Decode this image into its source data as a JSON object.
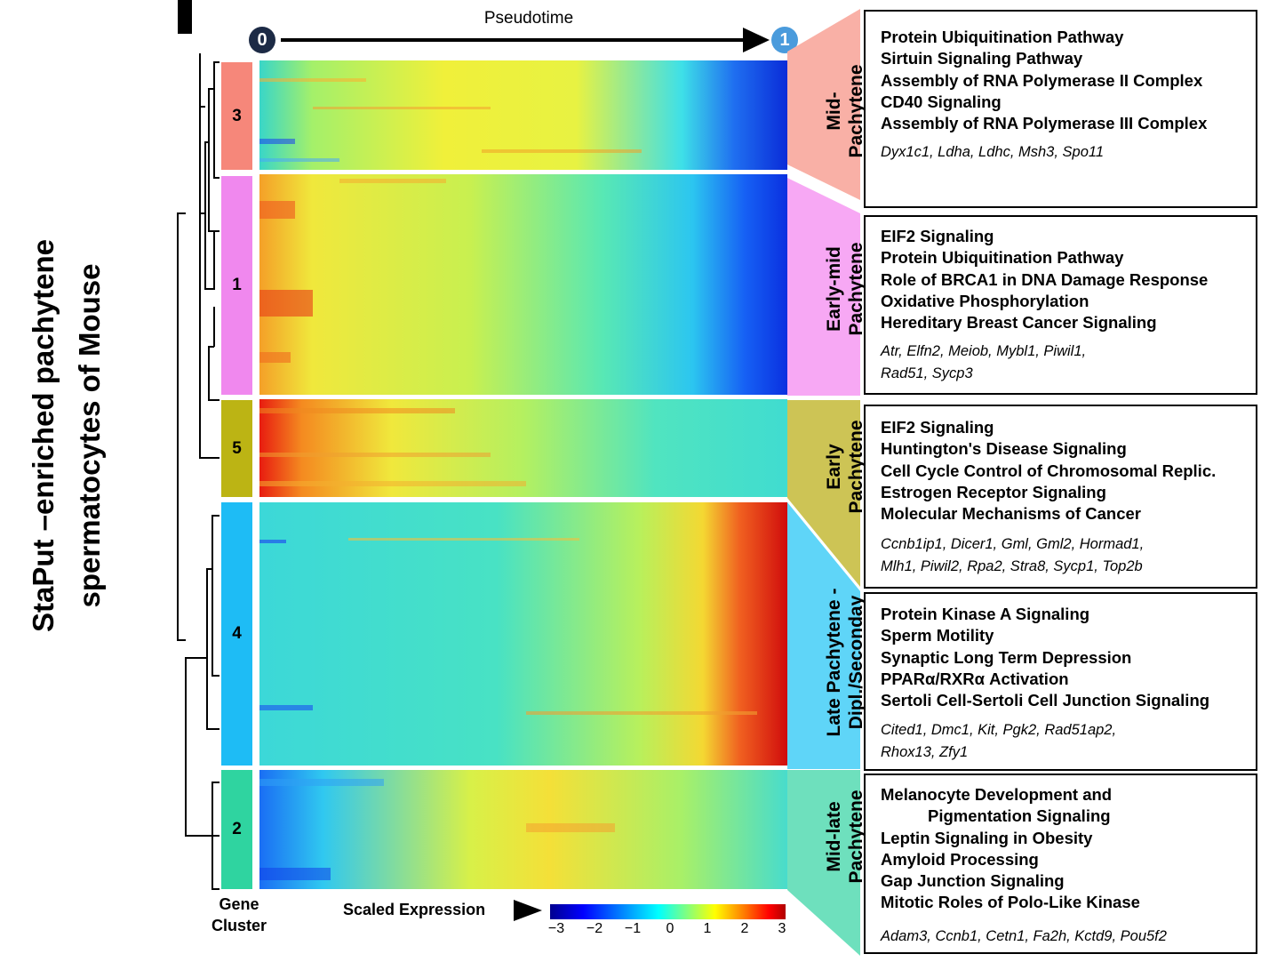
{
  "side_title": [
    "StaPut –enriched pachytene",
    "spermatocytes of Mouse"
  ],
  "pseudotime": {
    "label": "Pseudotime",
    "start": "0",
    "end": "1",
    "start_color": "#1c2a45",
    "end_color": "#4a9bdc"
  },
  "clusters": [
    {
      "id": "3",
      "color": "#f6877a",
      "stage": [
        "Mid-",
        "Pachytene"
      ],
      "stage_color": "#f9b0a6",
      "pathways": [
        "Protein Ubiquitination Pathway",
        "Sirtuin Signaling Pathway",
        "Assembly of RNA Polymerase II Complex",
        "CD40 Signaling",
        "Assembly of RNA Polymerase III Complex"
      ],
      "genes": [
        "Dyx1c1, Ldha, Ldhc, Msh3, Spo11"
      ]
    },
    {
      "id": "1",
      "color": "#f088ee",
      "stage": [
        "Early-mid",
        "Pachytene"
      ],
      "stage_color": "#f7a8f4",
      "pathways": [
        "EIF2 Signaling",
        "Protein Ubiquitination Pathway",
        "Role of BRCA1 in DNA Damage Response",
        "Oxidative Phosphorylation",
        "Hereditary Breast Cancer Signaling"
      ],
      "genes": [
        "Atr, Elfn2, Meiob, Mybl1, Piwil1,",
        "Rad51, Sycp3"
      ]
    },
    {
      "id": "5",
      "color": "#bcb414",
      "stage": [
        "Early",
        "Pachytene"
      ],
      "stage_color": "#cdc455",
      "pathways": [
        "EIF2 Signaling",
        "Huntington's Disease Signaling",
        "Cell Cycle Control of Chromosomal Replic.",
        "Estrogen Receptor Signaling",
        "Molecular Mechanisms of Cancer"
      ],
      "genes": [
        "Ccnb1ip1, Dicer1, Gml, Gml2, Hormad1,",
        "Mlh1, Piwil2, Rpa2, Stra8, Sycp1, Top2b"
      ]
    },
    {
      "id": "4",
      "color": "#1ebcf5",
      "stage": [
        "Late Pachytene -",
        "Dipl./Seconday"
      ],
      "stage_color": "#5fd5f8",
      "pathways": [
        "Protein Kinase A Signaling",
        "Sperm Motility",
        "Synaptic Long Term Depression",
        "PPARα/RXRα Activation",
        "Sertoli Cell-Sertoli Cell Junction Signaling"
      ],
      "genes": [
        "Cited1, Dmc1, Kit, Pgk2, Rad51ap2,",
        "Rhox13, Zfy1"
      ]
    },
    {
      "id": "2",
      "color": "#2fd4a0",
      "stage": [
        "Mid-late",
        "Pachytene"
      ],
      "stage_color": "#6ee0bd",
      "pathways": [
        "Melanocyte Development and",
        "Pigmentation Signaling",
        "Leptin Signaling in Obesity",
        "Amyloid Processing",
        "Gap Junction Signaling",
        "Mitotic Roles of Polo-Like Kinase"
      ],
      "genes": [
        "Adam3, Ccnb1, Cetn1, Fa2h, Kctd9, Pou5f2"
      ]
    }
  ],
  "legend": {
    "gene_cluster_label": [
      "Gene",
      "Cluster"
    ],
    "scale_label": "Scaled Expression",
    "ticks": [
      "−3",
      "−2",
      "−1",
      "0",
      "1",
      "2",
      "3"
    ],
    "scale_colors": [
      "#00008f",
      "#0000ff",
      "#0080ff",
      "#00ffff",
      "#80ff80",
      "#ffff00",
      "#ff8000",
      "#ff0000",
      "#800000"
    ]
  }
}
